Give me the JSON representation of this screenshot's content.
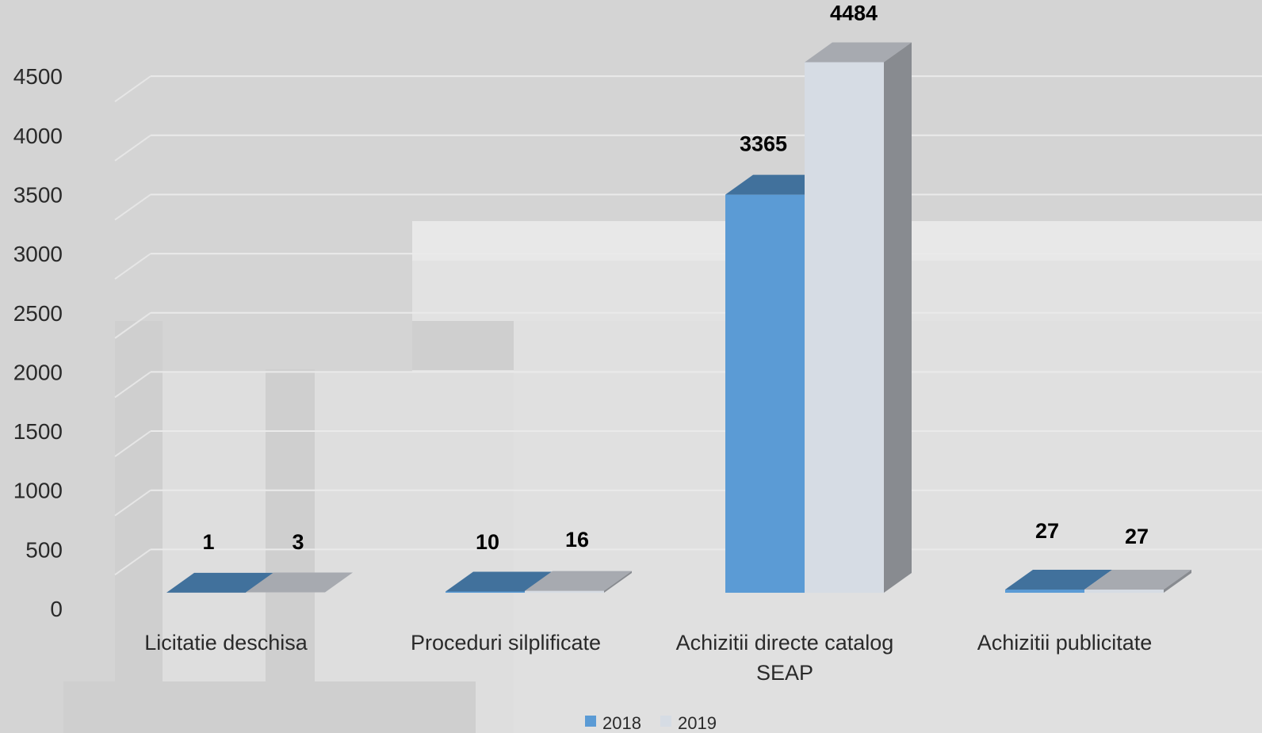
{
  "chart_data": {
    "type": "bar",
    "categories": [
      [
        "Licitatie deschisa"
      ],
      [
        "Proceduri silplificate"
      ],
      [
        "Achizitii directe catalog",
        "SEAP"
      ],
      [
        "Achizitii publicitate"
      ]
    ],
    "series": [
      {
        "name": "2018",
        "values": [
          1,
          10,
          3365,
          27
        ],
        "color": "#5b9bd5",
        "top": "#41719c",
        "side": "#3f6f99"
      },
      {
        "name": "2019",
        "values": [
          3,
          16,
          4484,
          27
        ],
        "color": "#d6dce4",
        "top": "#a7aab0",
        "side": "#888b90"
      }
    ],
    "yticks": [
      0,
      500,
      1000,
      1500,
      2000,
      2500,
      3000,
      3500,
      4000,
      4500
    ],
    "ylim": [
      0,
      4500
    ],
    "grid": true,
    "legend": "bottom",
    "style": "3d-column"
  }
}
